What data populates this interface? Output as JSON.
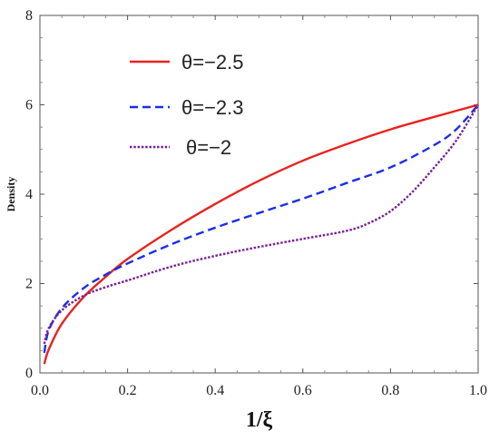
{
  "chart_data": {
    "type": "line",
    "title": "",
    "xlabel": "1/ξ",
    "ylabel": "Density",
    "xlim": [
      0,
      1.0
    ],
    "ylim": [
      0,
      8
    ],
    "xticks": [
      "0.0",
      "0.2",
      "0.4",
      "0.6",
      "0.8",
      "1.0"
    ],
    "yticks": [
      "0",
      "2",
      "4",
      "6",
      "8"
    ],
    "grid": false,
    "legend_position": "top-left",
    "series": [
      {
        "name": "θ=−2.5",
        "color": "#e8231e",
        "style": "solid",
        "x": [
          0.01,
          0.02,
          0.05,
          0.1,
          0.15,
          0.2,
          0.3,
          0.4,
          0.5,
          0.6,
          0.7,
          0.8,
          0.9,
          1.0
        ],
        "y": [
          0.2,
          0.52,
          1.1,
          1.7,
          2.15,
          2.55,
          3.2,
          3.78,
          4.3,
          4.75,
          5.12,
          5.45,
          5.73,
          6.0
        ]
      },
      {
        "name": "θ=−2.3",
        "color": "#1a2ee8",
        "style": "dashed",
        "x": [
          0.01,
          0.02,
          0.05,
          0.1,
          0.15,
          0.2,
          0.3,
          0.4,
          0.5,
          0.6,
          0.7,
          0.8,
          0.9,
          0.95,
          1.0
        ],
        "y": [
          0.45,
          0.95,
          1.45,
          1.9,
          2.2,
          2.45,
          2.88,
          3.25,
          3.58,
          3.9,
          4.25,
          4.6,
          5.1,
          5.45,
          6.0
        ]
      },
      {
        "name": "θ=−2",
        "color": "#7a1f9a",
        "style": "dotted",
        "x": [
          0.01,
          0.02,
          0.05,
          0.1,
          0.15,
          0.2,
          0.3,
          0.4,
          0.5,
          0.6,
          0.7,
          0.75,
          0.8,
          0.85,
          0.9,
          0.95,
          1.0
        ],
        "y": [
          0.65,
          1.0,
          1.4,
          1.73,
          1.92,
          2.07,
          2.38,
          2.62,
          2.82,
          3.0,
          3.18,
          3.35,
          3.62,
          4.05,
          4.6,
          5.2,
          6.0
        ]
      }
    ]
  }
}
